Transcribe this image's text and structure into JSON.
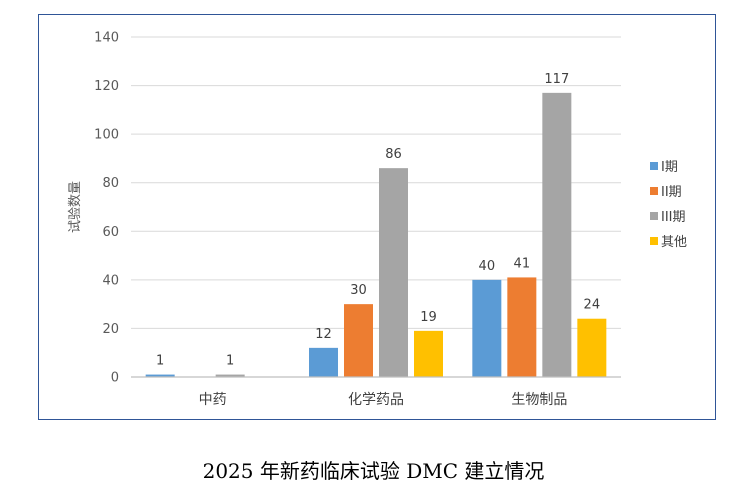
{
  "caption": "2025 年新药临床试验 DMC 建立情况",
  "chart_data": {
    "type": "bar",
    "title": "",
    "xlabel": "",
    "ylabel": "试验数量",
    "ylim": [
      0,
      140
    ],
    "yticks": [
      0,
      20,
      40,
      60,
      80,
      100,
      120,
      140
    ],
    "grid": true,
    "legend": "right",
    "categories": [
      "中药",
      "化学药品",
      "生物制品"
    ],
    "series": [
      {
        "name": "I期",
        "color": "#5b9bd5",
        "values": [
          1,
          12,
          40
        ]
      },
      {
        "name": "II期",
        "color": "#ed7d31",
        "values": [
          null,
          30,
          41
        ]
      },
      {
        "name": "III期",
        "color": "#a5a5a5",
        "values": [
          1,
          86,
          117
        ]
      },
      {
        "name": "其他",
        "color": "#ffc000",
        "values": [
          null,
          19,
          24
        ]
      }
    ]
  }
}
